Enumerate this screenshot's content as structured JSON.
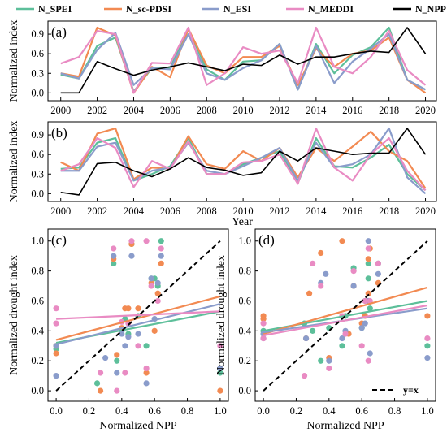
{
  "colors": {
    "N_SPEI": "#5dbf9a",
    "N_sc-PDSI": "#f28a52",
    "N_ESI": "#8a9ccb",
    "N_MEDDI": "#e98bc3",
    "N_NPP": "#000000"
  },
  "legend": {
    "items": [
      "N_SPEI",
      "N_sc-PDSI",
      "N_ESI",
      "N_MEDDI",
      "N_NPP"
    ]
  },
  "chart_data": [
    {
      "id": "a",
      "panel_label": "(a)",
      "type": "line",
      "ylabel": "Normalized index",
      "xlabel": "",
      "xlim": [
        1999.3,
        2020.6
      ],
      "ylim": [
        -0.12,
        1.1
      ],
      "xticks": [
        2000,
        2002,
        2004,
        2006,
        2008,
        2010,
        2012,
        2014,
        2016,
        2018,
        2020
      ],
      "yticks": [
        0.0,
        0.3,
        0.6,
        0.9
      ],
      "ytick_labels": [
        "0.0",
        "0.3",
        "0.6",
        "0.9"
      ],
      "x": [
        2000,
        2001,
        2002,
        2003,
        2004,
        2005,
        2006,
        2007,
        2008,
        2009,
        2010,
        2011,
        2012,
        2013,
        2014,
        2015,
        2016,
        2017,
        2018,
        2019,
        2020
      ],
      "series": [
        {
          "name": "N_SPEI",
          "values": [
            0.28,
            0.22,
            0.72,
            0.85,
            0.02,
            0.38,
            0.38,
            0.98,
            0.36,
            0.2,
            0.48,
            0.5,
            0.75,
            0.05,
            0.75,
            0.3,
            0.58,
            0.7,
            1.0,
            0.2,
            0.05
          ]
        },
        {
          "name": "N_sc-PDSI",
          "values": [
            0.3,
            0.25,
            1.0,
            0.88,
            0.0,
            0.4,
            0.24,
            0.98,
            0.42,
            0.3,
            0.55,
            0.55,
            0.72,
            0.12,
            0.68,
            0.4,
            0.6,
            0.65,
            0.85,
            0.2,
            0.0
          ]
        },
        {
          "name": "N_ESI",
          "values": [
            0.3,
            0.22,
            0.66,
            0.92,
            0.12,
            0.38,
            0.36,
            0.9,
            0.3,
            0.2,
            0.38,
            0.5,
            0.75,
            0.05,
            0.72,
            0.15,
            0.48,
            0.68,
            0.9,
            0.2,
            0.05
          ]
        },
        {
          "name": "N_MEDDI",
          "values": [
            0.45,
            0.55,
            0.95,
            0.9,
            0.0,
            0.46,
            0.45,
            1.0,
            0.12,
            0.3,
            0.7,
            0.6,
            0.65,
            0.15,
            1.0,
            0.4,
            0.3,
            0.55,
            0.95,
            0.35,
            0.12
          ]
        },
        {
          "name": "N_NPP",
          "values": [
            0.0,
            0.0,
            0.48,
            0.37,
            0.27,
            0.35,
            0.4,
            0.46,
            0.4,
            0.34,
            0.44,
            0.42,
            0.58,
            0.44,
            0.55,
            0.55,
            0.6,
            0.64,
            0.62,
            1.0,
            0.6
          ]
        }
      ]
    },
    {
      "id": "b",
      "panel_label": "(b)",
      "type": "line",
      "ylabel": "Normalized index",
      "xlabel": "Year",
      "xlim": [
        1999.3,
        2020.6
      ],
      "ylim": [
        -0.12,
        1.1
      ],
      "xticks": [
        2000,
        2002,
        2004,
        2006,
        2008,
        2010,
        2012,
        2014,
        2016,
        2018,
        2020
      ],
      "yticks": [
        0.0,
        0.3,
        0.6,
        0.9
      ],
      "ytick_labels": [
        "0.0",
        "0.3",
        "0.6",
        "0.9"
      ],
      "x": [
        2000,
        2001,
        2002,
        2003,
        2004,
        2005,
        2006,
        2007,
        2008,
        2009,
        2010,
        2011,
        2012,
        2013,
        2014,
        2015,
        2016,
        2017,
        2018,
        2019,
        2020
      ],
      "series": [
        {
          "name": "N_SPEI",
          "values": [
            0.38,
            0.4,
            0.78,
            0.85,
            0.2,
            0.3,
            0.42,
            0.85,
            0.3,
            0.3,
            0.45,
            0.55,
            0.65,
            0.16,
            0.85,
            0.42,
            0.4,
            0.55,
            0.75,
            0.3,
            0.05
          ]
        },
        {
          "name": "N_sc-PDSI",
          "values": [
            0.48,
            0.35,
            0.92,
            1.0,
            0.22,
            0.4,
            0.38,
            0.88,
            0.45,
            0.38,
            0.65,
            0.5,
            0.7,
            0.25,
            0.7,
            0.5,
            0.72,
            0.95,
            0.65,
            0.5,
            0.08
          ]
        },
        {
          "name": "N_ESI",
          "values": [
            0.35,
            0.35,
            0.72,
            0.78,
            0.2,
            0.35,
            0.4,
            0.78,
            0.35,
            0.3,
            0.42,
            0.55,
            0.7,
            0.2,
            0.78,
            0.4,
            0.45,
            0.6,
            1.0,
            0.25,
            0.0
          ]
        },
        {
          "name": "N_MEDDI",
          "values": [
            0.35,
            0.45,
            0.85,
            0.7,
            0.1,
            0.5,
            0.38,
            0.8,
            0.3,
            0.3,
            0.48,
            0.5,
            0.6,
            0.15,
            1.0,
            0.4,
            0.2,
            0.6,
            0.85,
            0.35,
            0.05
          ]
        },
        {
          "name": "N_NPP",
          "values": [
            0.02,
            -0.02,
            0.46,
            0.48,
            0.35,
            0.26,
            0.38,
            0.55,
            0.4,
            0.36,
            0.28,
            0.32,
            0.65,
            0.5,
            0.7,
            0.65,
            0.6,
            0.62,
            0.62,
            1.0,
            0.6
          ]
        }
      ]
    },
    {
      "id": "c",
      "panel_label": "(c)",
      "type": "scatter",
      "xlabel": "Normalized NPP",
      "ylabel": "Normalized drought index",
      "xlim": [
        -0.05,
        1.05
      ],
      "ylim": [
        -0.07,
        1.08
      ],
      "xticks": [
        0.0,
        0.2,
        0.4,
        0.6,
        0.8,
        1.0
      ],
      "yticks": [
        0.0,
        0.2,
        0.4,
        0.6,
        0.8,
        1.0
      ],
      "xtick_labels": [
        "0.0",
        "0.2",
        "0.4",
        "0.6",
        "0.8",
        "1.0"
      ],
      "ytick_labels": [
        "0.0",
        "0.2",
        "0.4",
        "0.6",
        "0.8",
        "1.0"
      ],
      "reference_line": {
        "from": [
          0,
          0
        ],
        "to": [
          1,
          1
        ]
      },
      "series": [
        {
          "name": "N_SPEI",
          "points": [
            [
              0.0,
              0.3
            ],
            [
              0.0,
              0.28
            ],
            [
              0.25,
              0.05
            ],
            [
              0.35,
              0.85
            ],
            [
              0.37,
              0.2
            ],
            [
              0.4,
              0.4
            ],
            [
              0.44,
              0.38
            ],
            [
              0.46,
              0.98
            ],
            [
              0.42,
              0.48
            ],
            [
              0.5,
              0.5
            ],
            [
              0.58,
              0.75
            ],
            [
              0.6,
              0.75
            ],
            [
              0.55,
              0.3
            ],
            [
              0.62,
              0.7
            ],
            [
              0.64,
              1.0
            ],
            [
              1.0,
              0.12
            ]
          ],
          "fit": [
            [
              0.0,
              0.32
            ],
            [
              1.0,
              0.53
            ]
          ]
        },
        {
          "name": "N_sc-PDSI",
          "points": [
            [
              0.0,
              0.25
            ],
            [
              0.0,
              0.3
            ],
            [
              0.27,
              0.0
            ],
            [
              0.35,
              0.88
            ],
            [
              0.37,
              0.24
            ],
            [
              0.4,
              0.42
            ],
            [
              0.44,
              0.55
            ],
            [
              0.46,
              0.98
            ],
            [
              0.42,
              0.55
            ],
            [
              0.5,
              0.55
            ],
            [
              0.58,
              0.72
            ],
            [
              0.62,
              0.65
            ],
            [
              0.55,
              0.12
            ],
            [
              0.64,
              0.85
            ],
            [
              0.6,
              0.4
            ],
            [
              1.0,
              0.0
            ]
          ],
          "fit": [
            [
              0.0,
              0.34
            ],
            [
              1.0,
              0.63
            ]
          ]
        },
        {
          "name": "N_ESI",
          "points": [
            [
              0.0,
              0.3
            ],
            [
              0.0,
              0.1
            ],
            [
              0.3,
              0.22
            ],
            [
              0.35,
              0.9
            ],
            [
              0.37,
              0.12
            ],
            [
              0.4,
              0.38
            ],
            [
              0.44,
              0.36
            ],
            [
              0.46,
              0.9
            ],
            [
              0.42,
              0.3
            ],
            [
              0.5,
              0.38
            ],
            [
              0.58,
              0.75
            ],
            [
              0.62,
              0.72
            ],
            [
              0.55,
              0.05
            ],
            [
              0.64,
              0.9
            ],
            [
              0.6,
              0.48
            ],
            [
              1.0,
              0.15
            ]
          ],
          "fit": [
            [
              0.0,
              0.31
            ],
            [
              1.0,
              0.58
            ]
          ]
        },
        {
          "name": "N_MEDDI",
          "points": [
            [
              0.0,
              0.55
            ],
            [
              0.0,
              0.45
            ],
            [
              0.27,
              0.12
            ],
            [
              0.35,
              0.95
            ],
            [
              0.37,
              0.0
            ],
            [
              0.4,
              0.46
            ],
            [
              0.44,
              0.45
            ],
            [
              0.46,
              1.0
            ],
            [
              0.42,
              0.12
            ],
            [
              0.5,
              0.3
            ],
            [
              0.58,
              0.7
            ],
            [
              0.62,
              0.6
            ],
            [
              0.55,
              0.15
            ],
            [
              0.55,
              1.0
            ],
            [
              0.64,
              0.95
            ],
            [
              1.0,
              0.3
            ]
          ],
          "fit": [
            [
              0.0,
              0.48
            ],
            [
              1.0,
              0.53
            ]
          ]
        }
      ]
    },
    {
      "id": "d",
      "panel_label": "(d)",
      "type": "scatter",
      "xlabel": "Normalized NPP",
      "ylabel": "Normalized drought index",
      "xlim": [
        -0.05,
        1.05
      ],
      "ylim": [
        -0.07,
        1.08
      ],
      "xticks": [
        0.0,
        0.2,
        0.4,
        0.6,
        0.8,
        1.0
      ],
      "yticks": [
        0.0,
        0.2,
        0.4,
        0.6,
        0.8,
        1.0
      ],
      "xtick_labels": [
        "0.0",
        "0.2",
        "0.4",
        "0.6",
        "0.8",
        "1.0"
      ],
      "ytick_labels": [
        "0.0",
        "0.2",
        "0.4",
        "0.6",
        "0.8",
        "1.0"
      ],
      "reference_line": {
        "from": [
          0,
          0
        ],
        "to": [
          1,
          1
        ],
        "legend_label": "y=x"
      },
      "series": [
        {
          "name": "N_SPEI",
          "points": [
            [
              0.0,
              0.38
            ],
            [
              0.0,
              0.4
            ],
            [
              0.25,
              0.45
            ],
            [
              0.3,
              0.4
            ],
            [
              0.35,
              0.2
            ],
            [
              0.4,
              0.42
            ],
            [
              0.48,
              0.3
            ],
            [
              0.5,
              0.5
            ],
            [
              0.55,
              0.82
            ],
            [
              0.6,
              0.42
            ],
            [
              0.62,
              0.6
            ],
            [
              0.64,
              0.75
            ],
            [
              0.64,
              0.85
            ],
            [
              0.65,
              0.55
            ],
            [
              0.7,
              0.85
            ],
            [
              1.0,
              0.3
            ]
          ],
          "fit": [
            [
              0.0,
              0.4
            ],
            [
              1.0,
              0.6
            ]
          ]
        },
        {
          "name": "N_sc-PDSI",
          "points": [
            [
              0.0,
              0.48
            ],
            [
              0.0,
              0.5
            ],
            [
              0.26,
              0.35
            ],
            [
              0.28,
              0.65
            ],
            [
              0.35,
              0.92
            ],
            [
              0.4,
              0.22
            ],
            [
              0.48,
              1.0
            ],
            [
              0.52,
              0.38
            ],
            [
              0.55,
              0.7
            ],
            [
              0.6,
              0.45
            ],
            [
              0.62,
              0.5
            ],
            [
              0.64,
              0.65
            ],
            [
              0.64,
              0.88
            ],
            [
              0.65,
              0.95
            ],
            [
              0.7,
              0.72
            ],
            [
              1.0,
              0.5
            ]
          ],
          "fit": [
            [
              0.0,
              0.38
            ],
            [
              1.0,
              0.69
            ]
          ]
        },
        {
          "name": "N_ESI",
          "points": [
            [
              0.0,
              0.35
            ],
            [
              0.0,
              0.38
            ],
            [
              0.26,
              0.35
            ],
            [
              0.35,
              0.72
            ],
            [
              0.38,
              0.78
            ],
            [
              0.4,
              0.2
            ],
            [
              0.48,
              0.35
            ],
            [
              0.5,
              0.4
            ],
            [
              0.55,
              0.7
            ],
            [
              0.6,
              0.42
            ],
            [
              0.62,
              0.45
            ],
            [
              0.64,
              0.6
            ],
            [
              0.64,
              1.0
            ],
            [
              0.65,
              0.25
            ],
            [
              0.7,
              0.78
            ],
            [
              1.0,
              0.22
            ]
          ],
          "fit": [
            [
              0.0,
              0.39
            ],
            [
              1.0,
              0.55
            ]
          ]
        },
        {
          "name": "N_MEDDI",
          "points": [
            [
              0.0,
              0.35
            ],
            [
              0.0,
              0.45
            ],
            [
              0.25,
              0.1
            ],
            [
              0.3,
              0.85
            ],
            [
              0.35,
              0.7
            ],
            [
              0.4,
              0.15
            ],
            [
              0.48,
              0.5
            ],
            [
              0.5,
              0.38
            ],
            [
              0.55,
              0.8
            ],
            [
              0.6,
              0.3
            ],
            [
              0.62,
              0.6
            ],
            [
              0.64,
              0.95
            ],
            [
              0.64,
              0.2
            ],
            [
              0.65,
              0.6
            ],
            [
              0.7,
              0.85
            ],
            [
              1.0,
              0.35
            ]
          ],
          "fit": [
            [
              0.0,
              0.37
            ],
            [
              1.0,
              0.57
            ]
          ]
        }
      ]
    }
  ]
}
